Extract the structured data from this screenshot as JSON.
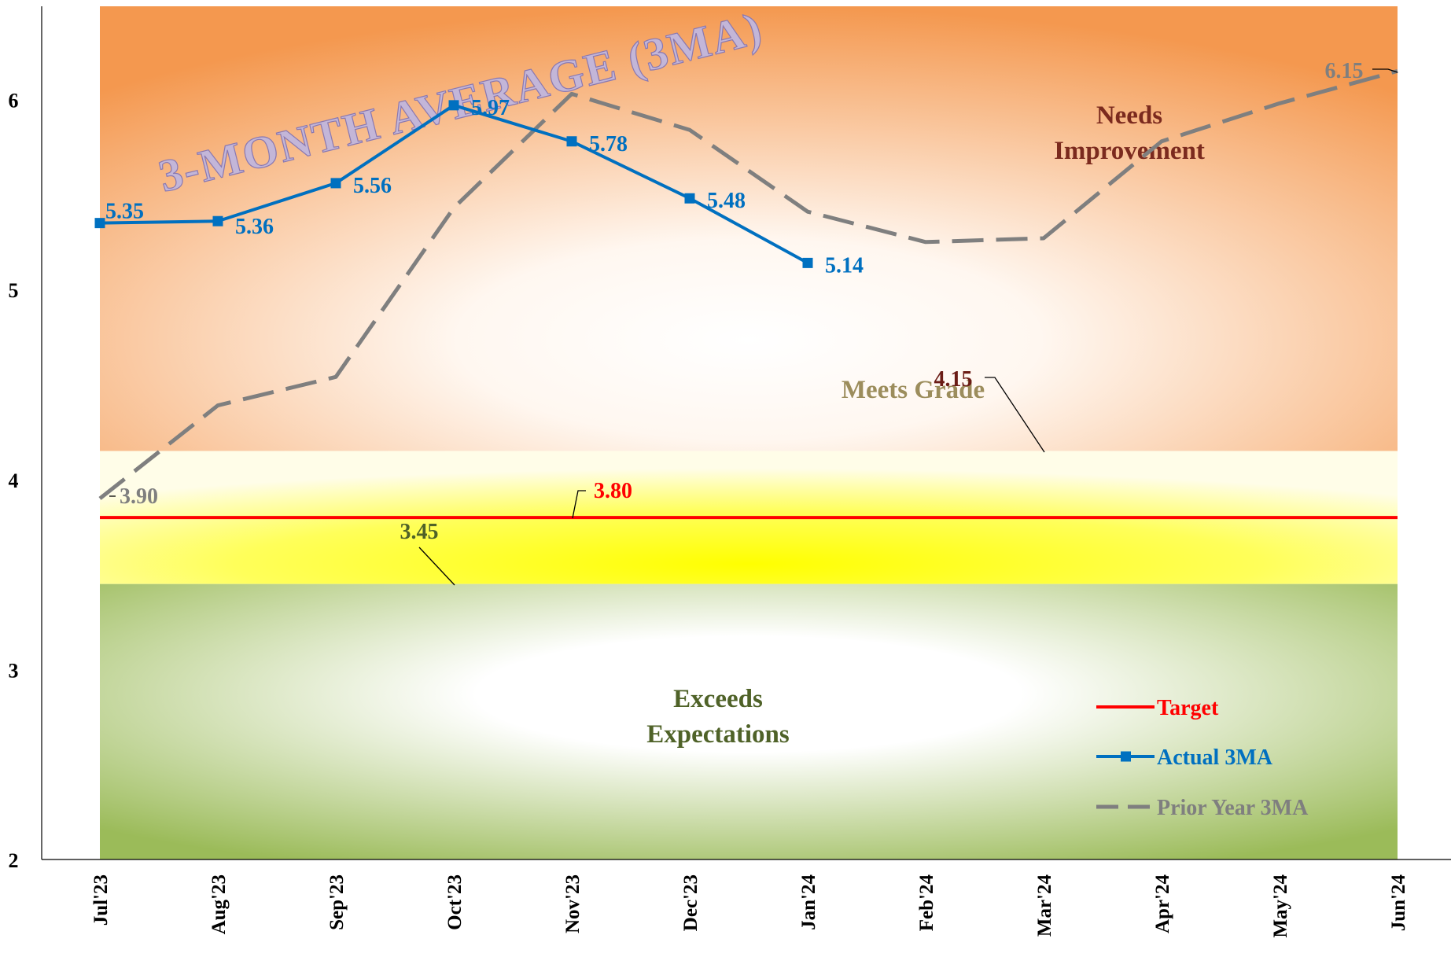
{
  "chart_data": {
    "type": "line",
    "title": "3-MONTH AVERAGE (3MA)",
    "xlabel": "",
    "ylabel": "",
    "ylim": [
      2,
      6.5
    ],
    "y_ticks": [
      "2",
      "3",
      "4",
      "5",
      "6"
    ],
    "categories": [
      "Jul'23",
      "Aug'23",
      "Sep'23",
      "Oct'23",
      "Nov'23",
      "Dec'23",
      "Jan'24",
      "Feb'24",
      "Mar'24",
      "Apr'24",
      "May'24",
      "Jun'24"
    ],
    "series": [
      {
        "name": "Target",
        "color": "#ff0000",
        "style": "solid",
        "values": [
          3.8,
          3.8,
          3.8,
          3.8,
          3.8,
          3.8,
          3.8,
          3.8,
          3.8,
          3.8,
          3.8,
          3.8
        ],
        "data_label": "3.80"
      },
      {
        "name": "Actual 3MA",
        "color": "#0070c0",
        "style": "solid-square-markers",
        "values": [
          5.35,
          5.36,
          5.56,
          5.97,
          5.78,
          5.48,
          5.14,
          null,
          null,
          null,
          null,
          null
        ],
        "data_labels": [
          "5.35",
          "5.36",
          "5.56",
          "5.97",
          "5.78",
          "5.48",
          "5.14"
        ]
      },
      {
        "name": "Prior Year 3MA",
        "color": "#7f7f7f",
        "style": "dashed",
        "values": [
          3.9,
          4.39,
          4.54,
          5.43,
          6.03,
          5.84,
          5.41,
          5.25,
          5.27,
          5.78,
          5.98,
          6.15
        ],
        "data_labels": [
          "3.90",
          null,
          null,
          null,
          null,
          null,
          null,
          null,
          null,
          null,
          null,
          "6.15"
        ]
      }
    ],
    "bands": [
      {
        "label": "Needs Improvement",
        "from": 4.15,
        "to": 6.5,
        "edge_color": "#f4984f",
        "label_color": "#7b2a1e"
      },
      {
        "label": "Meets Grade",
        "from": 3.45,
        "to": 4.15,
        "edge_color": "#fffde0",
        "label_color": "#9c8d5c"
      },
      {
        "label": "Exceeds Expectations",
        "from": 2,
        "to": 3.45,
        "edge_color": "#9bbb59",
        "label_color": "#4f6228"
      }
    ],
    "threshold_labels": [
      {
        "value": "4.15",
        "color": "#6b1c16"
      },
      {
        "value": "3.45",
        "color": "#4f6228"
      }
    ],
    "legend_position": "bottom-right",
    "grid": false
  }
}
